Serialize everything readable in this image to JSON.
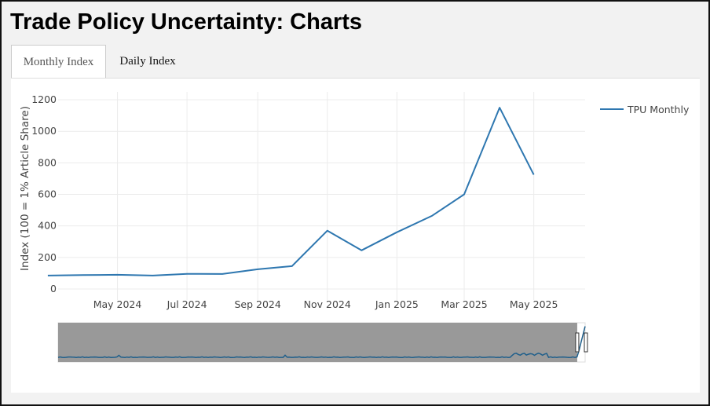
{
  "page": {
    "title": "Trade Policy Uncertainty: Charts"
  },
  "tabs": [
    {
      "label": "Monthly Index",
      "active": true
    },
    {
      "label": "Daily Index",
      "active": false
    }
  ],
  "chart_data": {
    "type": "line",
    "title": "",
    "xlabel": "",
    "ylabel": "Index (100 = 1% Article Share)",
    "ylim": [
      0,
      1250
    ],
    "xlim": [
      "2024-03-10",
      "2025-06-15"
    ],
    "grid": true,
    "legend": "top-right",
    "y_ticks": [
      0,
      200,
      400,
      600,
      800,
      1000,
      1200
    ],
    "x_ticks": [
      {
        "date": "2024-05-01",
        "label": "May 2024"
      },
      {
        "date": "2024-07-01",
        "label": "Jul 2024"
      },
      {
        "date": "2024-09-01",
        "label": "Sep 2024"
      },
      {
        "date": "2024-11-01",
        "label": "Nov 2024"
      },
      {
        "date": "2025-01-01",
        "label": "Jan 2025"
      },
      {
        "date": "2025-03-01",
        "label": "Mar 2025"
      },
      {
        "date": "2025-05-01",
        "label": "May 2025"
      }
    ],
    "series": [
      {
        "name": "TPU Monthly",
        "color": "#2e77b0",
        "points": [
          [
            "2024-03-01",
            85
          ],
          [
            "2024-04-01",
            88
          ],
          [
            "2024-05-01",
            90
          ],
          [
            "2024-06-01",
            85
          ],
          [
            "2024-07-01",
            96
          ],
          [
            "2024-08-01",
            95
          ],
          [
            "2024-09-01",
            125
          ],
          [
            "2024-10-01",
            145
          ],
          [
            "2024-11-01",
            370
          ],
          [
            "2024-12-01",
            245
          ],
          [
            "2025-01-01",
            360
          ],
          [
            "2025-02-01",
            465
          ],
          [
            "2025-03-01",
            600
          ],
          [
            "2025-04-01",
            1150
          ],
          [
            "2025-05-01",
            725
          ]
        ]
      }
    ],
    "rangeslider": {
      "selected_fraction": [
        0.985,
        1.0
      ]
    }
  }
}
